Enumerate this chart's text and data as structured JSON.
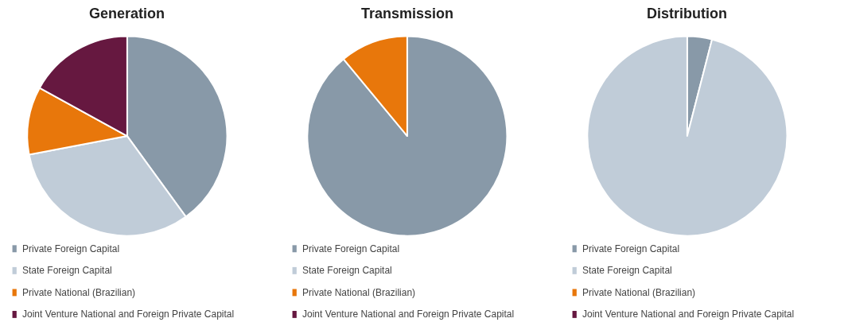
{
  "chart_data": [
    {
      "type": "pie",
      "title": "Generation",
      "categories": [
        "Private Foreign Capital",
        "State Foreign Capital",
        "Private National (Brazilian)",
        "Joint Venture National and Foreign Private Capital"
      ],
      "values": [
        40,
        32,
        11,
        17
      ],
      "colors": [
        "#8899a8",
        "#c0ccd8",
        "#e8770b",
        "#661840"
      ],
      "legend": "bottom"
    },
    {
      "type": "pie",
      "title": "Transmission",
      "categories": [
        "Private Foreign Capital",
        "State Foreign Capital",
        "Private National (Brazilian)",
        "Joint Venture National and Foreign Private Capital"
      ],
      "values": [
        89,
        0,
        11,
        0
      ],
      "colors": [
        "#8899a8",
        "#c0ccd8",
        "#e8770b",
        "#661840"
      ],
      "legend": "bottom"
    },
    {
      "type": "pie",
      "title": "Distribution",
      "categories": [
        "Private Foreign Capital",
        "State Foreign Capital",
        "Private National (Brazilian)",
        "Joint Venture National and Foreign Private Capital"
      ],
      "values": [
        4,
        96,
        0,
        0
      ],
      "colors": [
        "#8899a8",
        "#c0ccd8",
        "#e8770b",
        "#661840"
      ],
      "legend": "bottom"
    }
  ]
}
